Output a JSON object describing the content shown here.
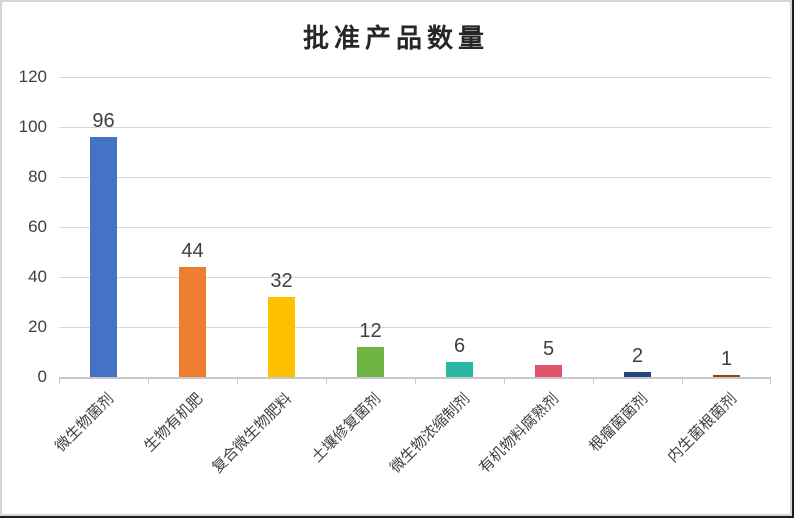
{
  "window": {
    "background": "#FFFFFF",
    "frame_border_color": "#D5D5D5",
    "frame_edge_color": "#1F1F1F"
  },
  "chart_data": {
    "type": "bar",
    "title": "批准产品数量",
    "categories": [
      "微生物菌剂",
      "生物有机肥",
      "复合微生物肥料",
      "土壤修复菌剂",
      "微生物浓缩制剂",
      "有机物料腐熟剂",
      "根瘤菌菌剂",
      "内生菌根菌剂"
    ],
    "values": [
      96,
      44,
      32,
      12,
      6,
      5,
      2,
      1
    ],
    "bar_colors": [
      "#4472C4",
      "#ED7D31",
      "#FFC000",
      "#6FB345",
      "#2BB8A2",
      "#E0536B",
      "#264478",
      "#8B4A15"
    ],
    "xlabel": "",
    "ylabel": "",
    "ylim": [
      0,
      120
    ],
    "yticks": [
      0,
      20,
      40,
      60,
      80,
      100,
      120
    ],
    "grid": true,
    "legend_position": "none",
    "data_labels_shown": true,
    "category_label_rotation_deg": -45,
    "colors": {
      "grid": "#D9D9D9",
      "axis": "#C8C8C8",
      "tick_label": "#404040",
      "data_label": "#404040",
      "category_label": "#404040",
      "title": "#262626"
    }
  }
}
